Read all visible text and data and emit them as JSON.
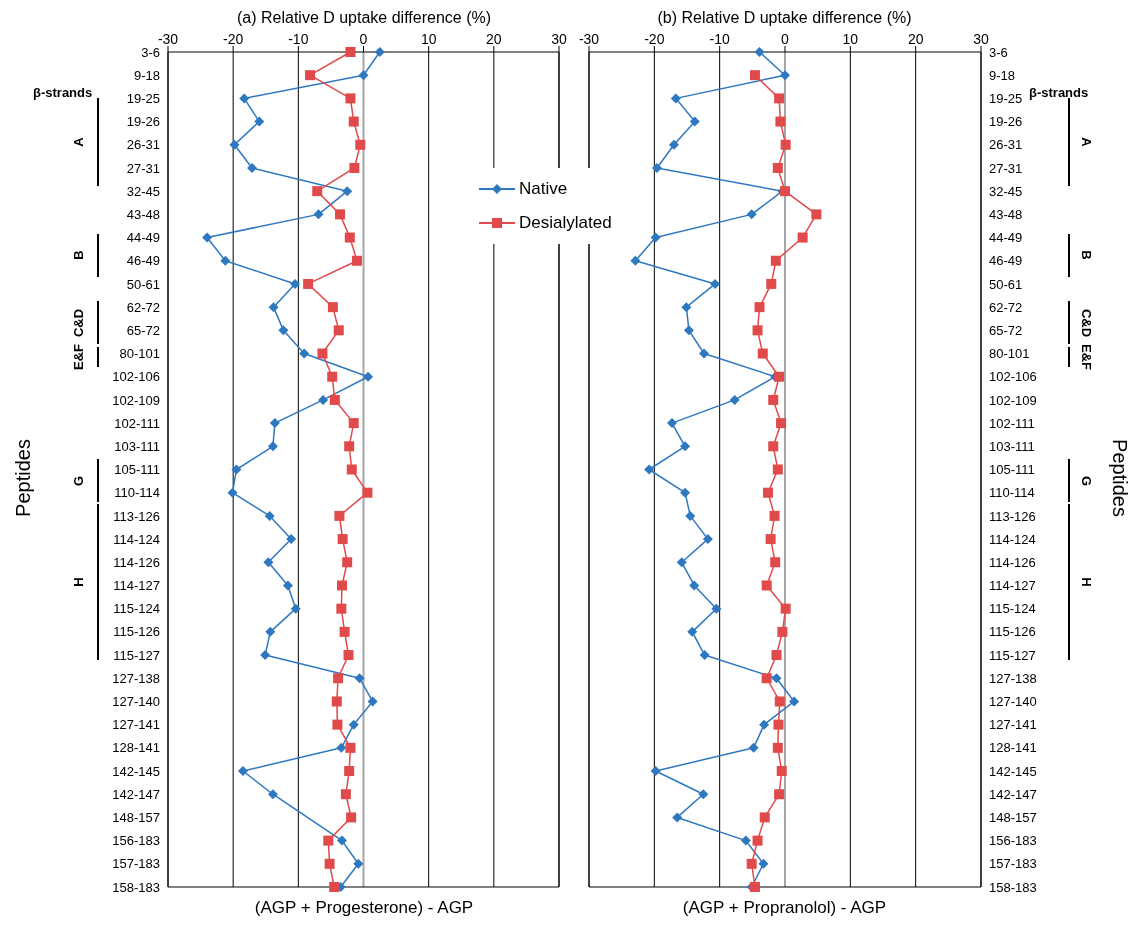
{
  "chart_data": [
    {
      "type": "line",
      "orientation": "horizontal",
      "title": "(a) Relative D uptake difference (%)",
      "xlabel": "(AGP + Progesterone) - AGP",
      "ylabel": "Peptides",
      "categories": [
        "3-6",
        "9-18",
        "19-25",
        "19-26",
        "26-31",
        "27-31",
        "32-45",
        "43-48",
        "44-49",
        "46-49",
        "50-61",
        "62-72",
        "65-72",
        "80-101",
        "102-106",
        "102-109",
        "102-111",
        "103-111",
        "105-111",
        "110-114",
        "113-126",
        "114-124",
        "114-126",
        "114-127",
        "115-124",
        "115-126",
        "115-127",
        "127-138",
        "127-140",
        "127-141",
        "128-141",
        "142-145",
        "142-147",
        "148-157",
        "156-183",
        "157-183",
        "158-183"
      ],
      "series": [
        {
          "name": "Native",
          "color": "#2e78c0",
          "marker": "diamond",
          "values": [
            2.5,
            0,
            -18.3,
            -16,
            -19.8,
            -17.1,
            -2.5,
            -6.9,
            -24,
            -21.2,
            -10.5,
            -13.8,
            -12.3,
            -9.1,
            0.7,
            -6.2,
            -13.6,
            -13.9,
            -19.5,
            -20.1,
            -14.4,
            -11.1,
            -14.6,
            -11.6,
            -10.4,
            -14.3,
            -15.1,
            -0.6,
            1.4,
            -1.5,
            -3.4,
            -18.5,
            -13.9,
            null,
            -3.3,
            -0.8,
            -3.5
          ]
        },
        {
          "name": "Desialylated",
          "color": "#e04a4a",
          "marker": "square",
          "values": [
            -2,
            -8.2,
            -2,
            -1.5,
            -0.5,
            -1.4,
            -7.1,
            -3.6,
            -2.1,
            -1,
            -8.5,
            -4.7,
            -3.8,
            -6.3,
            -4.8,
            -4.4,
            -1.5,
            -2.2,
            -1.8,
            0.6,
            -3.7,
            -3.2,
            -2.5,
            -3.3,
            -3.4,
            -2.9,
            -2.3,
            -3.9,
            -4.1,
            -4,
            -2,
            -2.2,
            -2.7,
            -1.9,
            -5.4,
            -5.2,
            -4.5
          ]
        }
      ],
      "xlim": [
        -30,
        30
      ],
      "xticks": [
        -30,
        -20,
        -10,
        0,
        10,
        20,
        30
      ],
      "grid": "x",
      "legend": "right",
      "ref_lines": [
        {
          "axis": "x",
          "value": 0,
          "color": "#a6a6a6"
        }
      ],
      "annotations": [
        "β-strands",
        "A",
        "B",
        "C&D",
        "E&F",
        "G",
        "H"
      ]
    },
    {
      "type": "line",
      "orientation": "horizontal",
      "title": "(b) Relative D uptake difference (%)",
      "xlabel": "(AGP + Propranolol) - AGP",
      "ylabel": "Peptides",
      "categories": [
        "3-6",
        "9-18",
        "19-25",
        "19-26",
        "26-31",
        "27-31",
        "32-45",
        "43-48",
        "44-49",
        "46-49",
        "50-61",
        "62-72",
        "65-72",
        "80-101",
        "102-106",
        "102-109",
        "102-111",
        "103-111",
        "105-111",
        "110-114",
        "113-126",
        "114-124",
        "114-126",
        "114-127",
        "115-124",
        "115-126",
        "115-127",
        "127-138",
        "127-140",
        "127-141",
        "128-141",
        "142-145",
        "142-147",
        "148-157",
        "156-183",
        "157-183",
        "158-183"
      ],
      "series": [
        {
          "color": "#2e78c0",
          "marker": "diamond",
          "values": [
            -3.9,
            0,
            -16.7,
            -13.8,
            -17,
            -19.6,
            -0.4,
            -5.1,
            -19.8,
            -22.9,
            -10.7,
            -15.1,
            -14.7,
            -12.4,
            -1.5,
            -7.7,
            -17.3,
            -15.3,
            -20.8,
            -15.3,
            -14.5,
            -11.8,
            -15.8,
            -13.9,
            -10.5,
            -14.2,
            -12.3,
            -1.3,
            1.4,
            -3.2,
            -4.8,
            -19.8,
            -12.5,
            -16.5,
            -6,
            -3.3,
            -5.1
          ]
        },
        {
          "color": "#e04a4a",
          "marker": "square",
          "values": [
            null,
            -4.6,
            -0.9,
            -0.7,
            0.1,
            -1.1,
            0,
            4.8,
            2.7,
            -1.4,
            -2.1,
            -3.9,
            -4.2,
            -3.4,
            -0.9,
            -1.8,
            -0.6,
            -1.8,
            -1.1,
            -2.6,
            -1.6,
            -2.2,
            -1.5,
            -2.8,
            0.1,
            -0.4,
            -1.3,
            -2.8,
            -0.8,
            -1,
            -1.1,
            -0.5,
            -0.9,
            -3.1,
            -4.2,
            -5.1,
            -4.6
          ]
        }
      ],
      "xlim": [
        -30,
        30
      ],
      "xticks": [
        -30,
        -20,
        -10,
        0,
        10,
        20,
        30
      ],
      "grid": "x",
      "ref_lines": [
        {
          "axis": "x",
          "value": 0,
          "color": "#a6a6a6"
        }
      ],
      "annotations": [
        "β-strands",
        "A",
        "B",
        "C&D",
        "E&F",
        "G",
        "H"
      ]
    }
  ]
}
